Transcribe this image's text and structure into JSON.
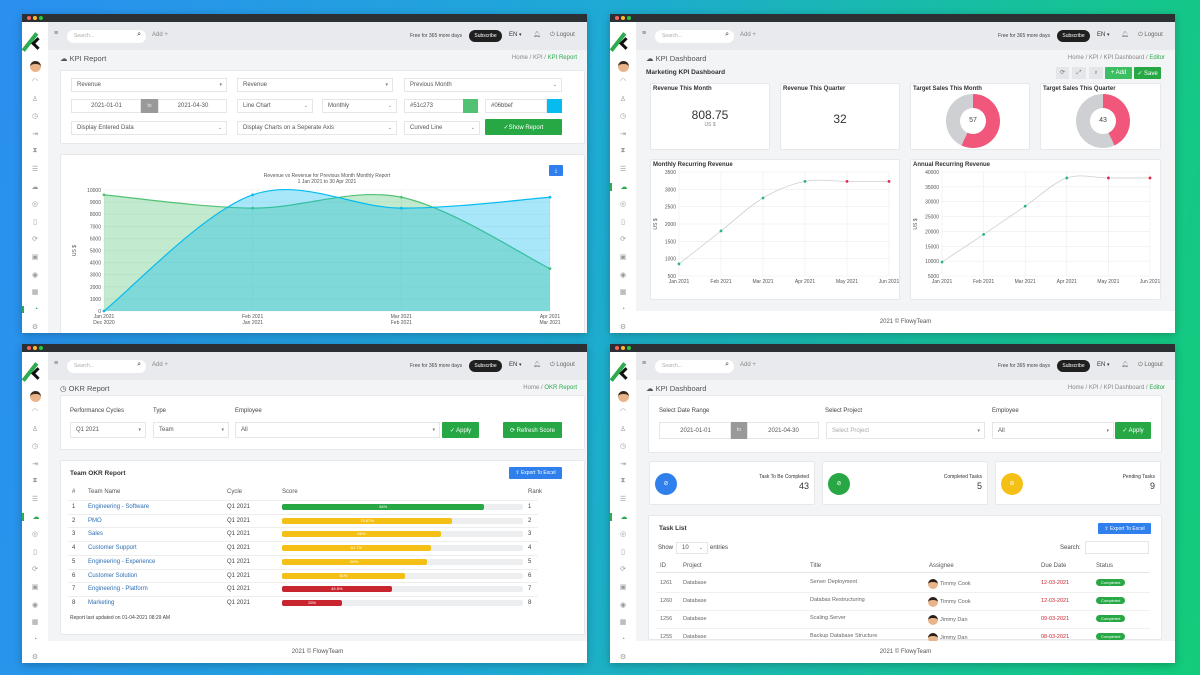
{
  "shell": {
    "search_placeholder": "Search...",
    "add_label": "Add +",
    "trial_text": "Free for 365 more days",
    "subscribe_label": "Subscribe",
    "language": "EN",
    "logout_label": "Logout",
    "footer": "2021 © FlowyTeam",
    "sidebar_icons": [
      "dashboard-icon",
      "user-icon",
      "clock-icon",
      "logout-door-icon",
      "hourglass-icon",
      "list-icon",
      "cloud-icon",
      "target-icon",
      "document-icon",
      "refresh-icon",
      "gift-icon",
      "camera-icon",
      "calendar-icon",
      "history-icon",
      "settings-icon"
    ],
    "colors": {
      "green": "#28a745",
      "blue": "#2f80ed",
      "red": "#c9252f",
      "yellow": "#f5c016",
      "pink": "#f0577a"
    }
  },
  "kpi_report": {
    "active_nav": "history-icon",
    "page_title": "KPI Report",
    "breadcrumb": [
      "Home",
      "KPI",
      "KPI Report"
    ],
    "filters": {
      "metric_1": "Revenue",
      "metric_2": "Revenue",
      "compare": "Previous Month",
      "date_from": "2021-01-01",
      "to_label": "to",
      "date_to": "2021-04-30",
      "chart_type": "Line Chart",
      "interval": "Monthly",
      "color_1": "#51c273",
      "color_2": "#06bbef",
      "display_mode": "Display Entered Data",
      "axis_mode": "Display Charts on a Seperate Axis",
      "line_style": "Curved Line",
      "show_report_label": "✓Show Report"
    }
  },
  "kpi_dashboard": {
    "active_nav": "cloud-icon",
    "page_title": "KPI Dashboard",
    "breadcrumb": [
      "Home",
      "KPI",
      "KPI Dashboard",
      "Editor"
    ],
    "dashboard_title": "Marketing KPI Dashboard",
    "add_label": "+ Add",
    "save_label": "✓ Save",
    "cards": [
      {
        "title": "Revenue This Month",
        "value": "808.75",
        "unit": "US $"
      },
      {
        "title": "Revenue This Quarter",
        "value": "32"
      },
      {
        "title": "Target Sales This Month",
        "value": "57",
        "percent": 57
      },
      {
        "title": "Target Sales This Quarter",
        "value": "43",
        "percent": 43
      }
    ],
    "mrr_title": "Monthly Recurring Revenue",
    "arr_title": "Annual Recurring Revenue"
  },
  "okr_report": {
    "active_nav": "cloud-icon",
    "page_title": "OKR Report",
    "breadcrumb": [
      "Home",
      "OKR Report"
    ],
    "labels": {
      "cycle": "Performance Cycles",
      "type": "Type",
      "employee": "Employee"
    },
    "values": {
      "cycle": "Q1 2021",
      "type": "Team",
      "employee": "All"
    },
    "apply_label": "✓ Apply",
    "refresh_label": "⟳ Refresh Score",
    "table_title": "Team OKR Report",
    "export_label": "⇪ Export To Excel",
    "columns": [
      "#",
      "Team Name",
      "Cycle",
      "Score",
      "Rank"
    ],
    "rows": [
      {
        "num": "1",
        "team": "Engineering - Software",
        "cycle": "Q1 2021",
        "score": 84,
        "score_label": "84%",
        "status": "green",
        "rank": "1"
      },
      {
        "num": "2",
        "team": "PMO",
        "cycle": "Q1 2021",
        "score": 70.67,
        "score_label": "70.67%",
        "status": "yellow",
        "rank": "2"
      },
      {
        "num": "3",
        "team": "Sales",
        "cycle": "Q1 2021",
        "score": 66,
        "score_label": "66%",
        "status": "yellow",
        "rank": "3"
      },
      {
        "num": "4",
        "team": "Customer Support",
        "cycle": "Q1 2021",
        "score": 61.7,
        "score_label": "61.7%",
        "status": "yellow",
        "rank": "4"
      },
      {
        "num": "5",
        "team": "Engineering - Experience",
        "cycle": "Q1 2021",
        "score": 60,
        "score_label": "60%",
        "status": "yellow",
        "rank": "5"
      },
      {
        "num": "6",
        "team": "Customer Solution",
        "cycle": "Q1 2021",
        "score": 51,
        "score_label": "51%",
        "status": "yellow",
        "rank": "6"
      },
      {
        "num": "7",
        "team": "Engineering - Platform",
        "cycle": "Q1 2021",
        "score": 45.5,
        "score_label": "45.5%",
        "status": "red",
        "rank": "7"
      },
      {
        "num": "8",
        "team": "Marketing",
        "cycle": "Q1 2021",
        "score": 25,
        "score_label": "25%",
        "status": "red",
        "rank": "8"
      }
    ],
    "last_updated": "Report last updated on 01-04-2021 08:29 AM"
  },
  "task_dashboard": {
    "active_nav": "cloud-icon",
    "page_title": "KPI Dashboard",
    "breadcrumb": [
      "Home",
      "KPI",
      "KPI Dashboard",
      "Editor"
    ],
    "labels": {
      "date_range": "Select Date Range",
      "project": "Select Project",
      "employee": "Employee"
    },
    "date_from": "2021-01-01",
    "to_label": "to",
    "date_to": "2021-04-30",
    "project_placeholder": "Select Project",
    "employee": "All",
    "apply_label": "✓ Apply",
    "stats": [
      {
        "label": "Task To Be Completed",
        "value": "43",
        "color": "#2f80ed"
      },
      {
        "label": "Completed Tasks",
        "value": "5",
        "color": "#28a745"
      },
      {
        "label": "Pending Tasks",
        "value": "9",
        "color": "#f5c016"
      }
    ],
    "table_title": "Task List",
    "export_label": "⇪ Export To Excel",
    "show_label": "Show",
    "entries_value": "10",
    "entries_label": "entries",
    "search_label": "Search:",
    "columns": [
      "ID",
      "Project",
      "Title",
      "Assignee",
      "Due Date",
      "Status"
    ],
    "rows": [
      {
        "id": "1261",
        "project": "Database",
        "title": "Server Deployment",
        "assignee": "Timmy Cook",
        "due": "12-03-2021",
        "status": "Completed"
      },
      {
        "id": "1260",
        "project": "Database",
        "title": "Databas Restructuring",
        "assignee": "Timmy Cook",
        "due": "12-03-2021",
        "status": "Completed"
      },
      {
        "id": "1256",
        "project": "Database",
        "title": "Scaling Server",
        "assignee": "Jimmy Dan",
        "due": "09-03-2021",
        "status": "Completed"
      },
      {
        "id": "1255",
        "project": "Database",
        "title": "Backup Database Structure",
        "assignee": "Jimmy Dan",
        "due": "08-03-2021",
        "status": "Completed"
      }
    ]
  },
  "chart_data": [
    {
      "type": "area",
      "title": "Revenue vs Revenue for Previous Month Monthly Report",
      "subtitle": "1 Jan 2021 to 30 Apr 2021",
      "ylabel": "US $",
      "ylim": [
        0,
        10000
      ],
      "yticks": [
        "0",
        "1000",
        "2000",
        "3000",
        "4000",
        "5000",
        "6000",
        "7000",
        "8000",
        "9000",
        "10000"
      ],
      "categories": [
        "Jan 2021",
        "Feb 2021",
        "Mar 2021",
        "Apr 2021"
      ],
      "categories_secondary": [
        "Dec 2020",
        "Jan 2021",
        "Feb 2021",
        "Mar 2021"
      ],
      "grid": true,
      "series": [
        {
          "values": [
            9600,
            8500,
            9400,
            3500
          ],
          "color": "#51c273"
        },
        {
          "values": [
            0,
            9600,
            8500,
            9400
          ],
          "color": "#06bbef"
        }
      ]
    },
    {
      "type": "line",
      "title": "Monthly Recurring Revenue",
      "ylabel": "US $",
      "ylim": [
        500,
        3500
      ],
      "yticks": [
        "500",
        "1000",
        "1500",
        "2000",
        "2500",
        "3000",
        "3500"
      ],
      "categories": [
        "Jan 2021",
        "Feb 2021",
        "Mar 2021",
        "Apr 2021",
        "May 2021",
        "Jun 2021"
      ],
      "grid": true,
      "series": [
        {
          "values": [
            850,
            1800,
            2750,
            3230,
            3230,
            3230
          ],
          "point_colors": [
            "#2bb38a",
            "#2bb38a",
            "#2bb38a",
            "#2bb38a",
            "#e0284f",
            "#e0284f"
          ]
        }
      ]
    },
    {
      "type": "line",
      "title": "Annual Recurring Revenue",
      "ylabel": "US $",
      "ylim": [
        5000,
        40000
      ],
      "yticks": [
        "5000",
        "10000",
        "15000",
        "20000",
        "25000",
        "30000",
        "35000",
        "40000"
      ],
      "categories": [
        "Jan 2021",
        "Feb 2021",
        "Mar 2021",
        "Apr 2021",
        "May 2021",
        "Jun 2021"
      ],
      "grid": true,
      "series": [
        {
          "values": [
            9700,
            19000,
            28500,
            38000,
            38000,
            38000
          ],
          "point_colors": [
            "#2bb38a",
            "#2bb38a",
            "#2bb38a",
            "#2bb38a",
            "#e0284f",
            "#e0284f"
          ]
        }
      ]
    }
  ]
}
